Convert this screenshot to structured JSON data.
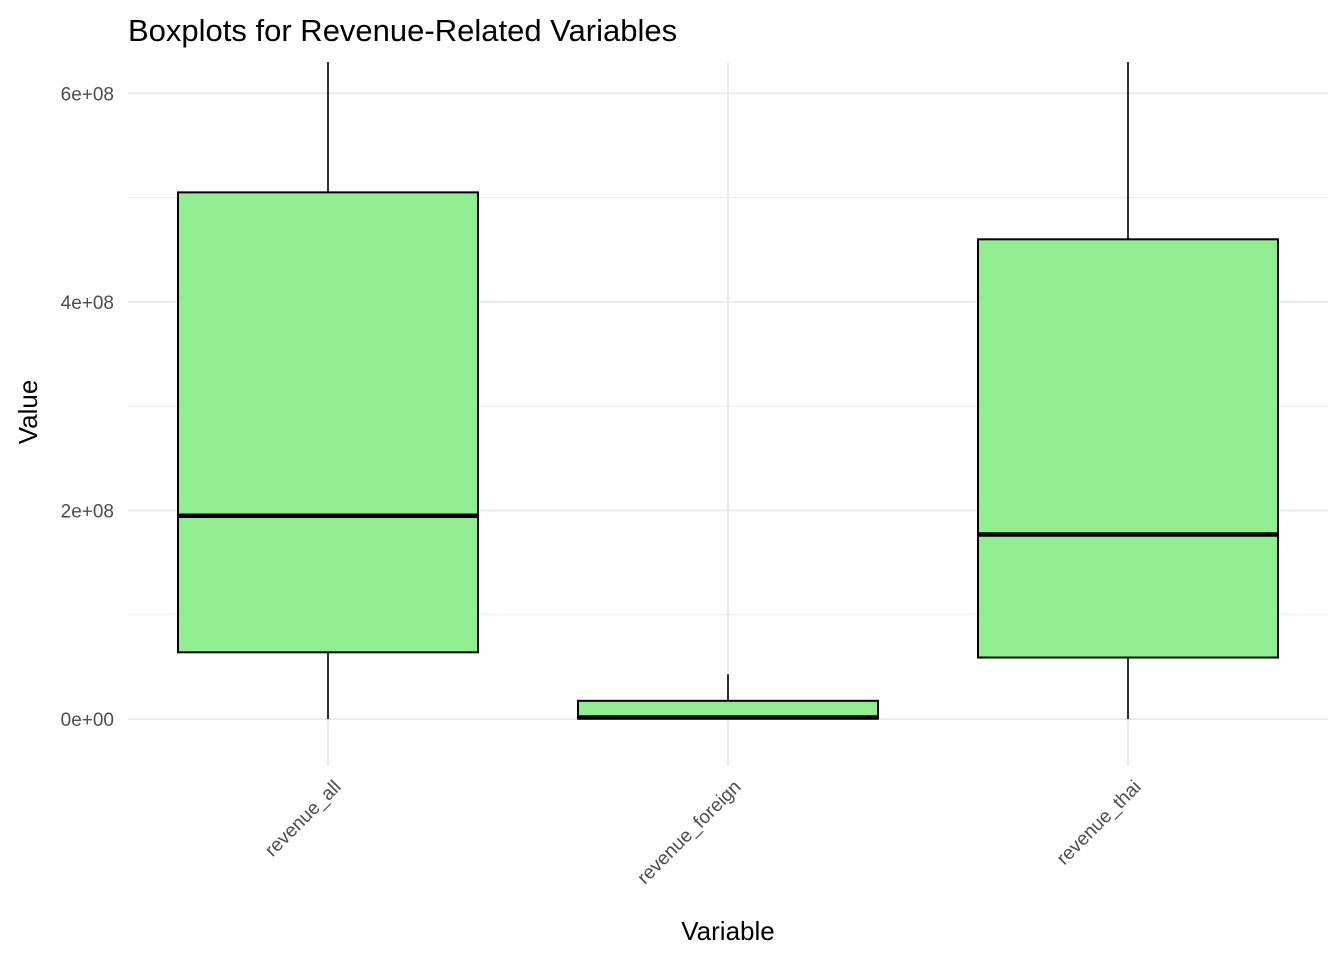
{
  "chart_data": {
    "type": "boxplot",
    "title": "Boxplots for Revenue-Related Variables",
    "xlabel": "Variable",
    "ylabel": "Value",
    "categories": [
      "revenue_all",
      "revenue_foreign",
      "revenue_thai"
    ],
    "y_ticks": [
      0,
      200000000,
      400000000,
      600000000
    ],
    "y_tick_labels": [
      "0e+00",
      "2e+08",
      "4e+08",
      "6e+08"
    ],
    "ylim": [
      -45000000,
      630000000
    ],
    "grid": true,
    "legend": "none",
    "boxes": [
      {
        "category": "revenue_all",
        "whisker_low": 0,
        "q1": 64000000,
        "median": 195000000,
        "q3": 505000000,
        "whisker_high": 630000000
      },
      {
        "category": "revenue_foreign",
        "whisker_low": 0,
        "q1": 500000,
        "median": 1500000,
        "q3": 17500000,
        "whisker_high": 43000000
      },
      {
        "category": "revenue_thai",
        "whisker_low": 0,
        "q1": 59000000,
        "median": 177000000,
        "q3": 460000000,
        "whisker_high": 630000000
      }
    ],
    "colors": {
      "box_fill": "#90EE90",
      "box_stroke": "#000000",
      "grid": "#ebebeb"
    }
  }
}
